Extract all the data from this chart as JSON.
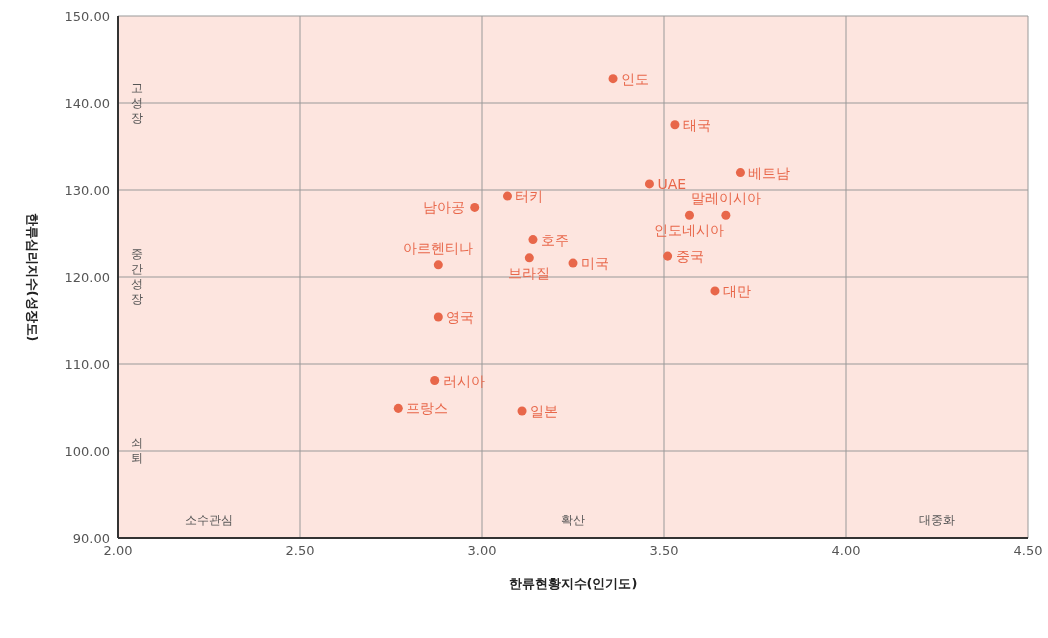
{
  "chart_data": {
    "type": "scatter",
    "xlabel": "한류현황지수(인기도)",
    "ylabel": "한류심리지수(성장도)",
    "xlim": [
      2,
      4.5
    ],
    "xticks": [
      {
        "value": 2,
        "label": "2.00"
      },
      {
        "value": 2.5,
        "label": "2.50"
      },
      {
        "value": 3,
        "label": "3.00"
      },
      {
        "value": 3.5,
        "label": "3.50"
      },
      {
        "value": 4,
        "label": "4.00"
      },
      {
        "value": 4.5,
        "label": "4.50"
      }
    ],
    "ylim": [
      90,
      150
    ],
    "yticks": [
      {
        "value": 90,
        "label": "90.00"
      },
      {
        "value": 100,
        "label": "100.00"
      },
      {
        "value": 110,
        "label": "110.00"
      },
      {
        "value": 120,
        "label": "120.00"
      },
      {
        "value": 130,
        "label": "130.00"
      },
      {
        "value": 140,
        "label": "140.00"
      },
      {
        "value": 150,
        "label": "150.00"
      }
    ],
    "grid": true,
    "legend": false,
    "marker": "circle",
    "annotations": [
      "고성장",
      "중간성장",
      "쇠퇴",
      "소수관심",
      "확산",
      "대중화"
    ],
    "series": [
      {
        "name": "인도",
        "color": "#e8674a",
        "x": [
          3.36
        ],
        "values": [
          142.8
        ]
      },
      {
        "name": "태국",
        "color": "#e8674a",
        "x": [
          3.53
        ],
        "values": [
          137.5
        ]
      },
      {
        "name": "베트남",
        "color": "#e8674a",
        "x": [
          3.71
        ],
        "values": [
          132.0
        ]
      },
      {
        "name": "UAE",
        "color": "#e8674a",
        "x": [
          3.46
        ],
        "values": [
          130.7
        ]
      },
      {
        "name": "터키",
        "color": "#e8674a",
        "x": [
          3.07
        ],
        "values": [
          129.3
        ]
      },
      {
        "name": "남아공",
        "color": "#e8674a",
        "x": [
          2.98
        ],
        "values": [
          128.0
        ]
      },
      {
        "name": "말레이시아",
        "color": "#e8674a",
        "x": [
          3.67
        ],
        "values": [
          127.1
        ]
      },
      {
        "name": "인도네시아",
        "color": "#e8674a",
        "x": [
          3.57
        ],
        "values": [
          127.1
        ]
      },
      {
        "name": "호주",
        "color": "#e8674a",
        "x": [
          3.14
        ],
        "values": [
          124.3
        ]
      },
      {
        "name": "아르헨티나",
        "color": "#e8674a",
        "x": [
          2.88
        ],
        "values": [
          121.4
        ]
      },
      {
        "name": "브라질",
        "color": "#e8674a",
        "x": [
          3.13
        ],
        "values": [
          122.2
        ]
      },
      {
        "name": "미국",
        "color": "#e8674a",
        "x": [
          3.25
        ],
        "values": [
          121.6
        ]
      },
      {
        "name": "중국",
        "color": "#e8674a",
        "x": [
          3.51
        ],
        "values": [
          122.4
        ]
      },
      {
        "name": "대만",
        "color": "#e8674a",
        "x": [
          3.64
        ],
        "values": [
          118.4
        ]
      },
      {
        "name": "영국",
        "color": "#e8674a",
        "x": [
          2.88
        ],
        "values": [
          115.4
        ]
      },
      {
        "name": "러시아",
        "color": "#e8674a",
        "x": [
          2.87
        ],
        "values": [
          108.1
        ]
      },
      {
        "name": "프랑스",
        "color": "#e8674a",
        "x": [
          2.77
        ],
        "values": [
          104.9
        ]
      },
      {
        "name": "일본",
        "color": "#e8674a",
        "x": [
          3.11
        ],
        "values": [
          104.6
        ]
      }
    ]
  }
}
